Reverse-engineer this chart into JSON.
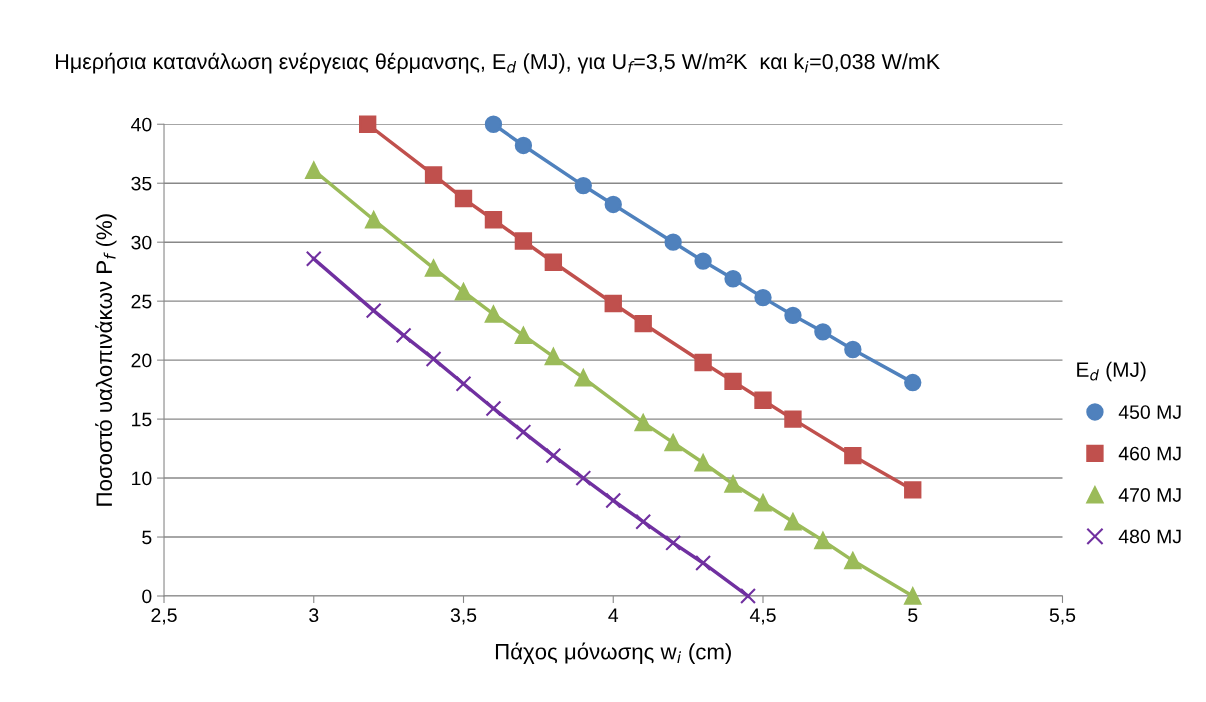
{
  "chart_data": {
    "type": "line",
    "title": "Ημερήσια κατανάλωση ενέργειας θέρμανσης, E$_{d}$ (MJ), για U$_{f}$=3,5 W/m²K  και k$_{i}$=0,038 W/mK",
    "xlabel": "Πάχος μόνωσης w$_{i}$ (cm)",
    "ylabel": "Ποσοστό υαλοπινάκων P$_{f}$ (%)",
    "legend_title": "E$_{d}$ (MJ)",
    "legend": "right",
    "grid": "y",
    "xlim": [
      2.5,
      5.5
    ],
    "xticks": [
      {
        "value": 2.5,
        "label": "2,5"
      },
      3,
      {
        "value": 3.5,
        "label": "3,5"
      },
      4,
      {
        "value": 4.5,
        "label": "4,5"
      },
      5,
      {
        "value": 5.5,
        "label": "5,5"
      }
    ],
    "ylim": [
      0,
      40
    ],
    "yticks": [
      0,
      5,
      10,
      15,
      20,
      25,
      30,
      35,
      40
    ],
    "series": [
      {
        "name": "450 MJ",
        "color": "#4f81bd",
        "marker": "circle",
        "x": [
          3.6,
          3.7,
          3.9,
          4.0,
          4.2,
          4.3,
          4.4,
          4.5,
          4.6,
          4.7,
          4.8,
          5.0
        ],
        "values": [
          40,
          38.2,
          34.8,
          33.2,
          30,
          28.4,
          26.9,
          25.3,
          23.8,
          22.4,
          20.9,
          18.1
        ]
      },
      {
        "name": "460 MJ",
        "color": "#c0504d",
        "marker": "square",
        "x": [
          3.18,
          3.4,
          3.5,
          3.6,
          3.7,
          3.8,
          4.0,
          4.1,
          4.3,
          4.4,
          4.5,
          4.6,
          4.8,
          5.0
        ],
        "values": [
          40,
          35.7,
          33.7,
          31.9,
          30.1,
          28.3,
          24.8,
          23.1,
          19.8,
          18.2,
          16.6,
          15.0,
          11.9,
          9.0
        ]
      },
      {
        "name": "470 MJ",
        "color": "#9bbb59",
        "marker": "triangle",
        "x": [
          3.0,
          3.2,
          3.4,
          3.5,
          3.6,
          3.7,
          3.8,
          3.9,
          4.1,
          4.2,
          4.3,
          4.4,
          4.5,
          4.6,
          4.7,
          4.8,
          5.0
        ],
        "values": [
          36.1,
          31.9,
          27.8,
          25.8,
          23.9,
          22.1,
          20.3,
          18.5,
          14.7,
          13.0,
          11.3,
          9.5,
          7.9,
          6.3,
          4.7,
          3.0,
          0
        ]
      },
      {
        "name": "480 MJ",
        "color": "#7030a0",
        "marker": "cross",
        "x": [
          3.0,
          3.2,
          3.3,
          3.4,
          3.5,
          3.6,
          3.7,
          3.8,
          3.9,
          4.0,
          4.1,
          4.2,
          4.3,
          4.45
        ],
        "values": [
          28.6,
          24.2,
          22.1,
          20.1,
          18.0,
          15.9,
          13.9,
          11.9,
          10.0,
          8.1,
          6.3,
          4.5,
          2.8,
          0
        ]
      }
    ]
  }
}
